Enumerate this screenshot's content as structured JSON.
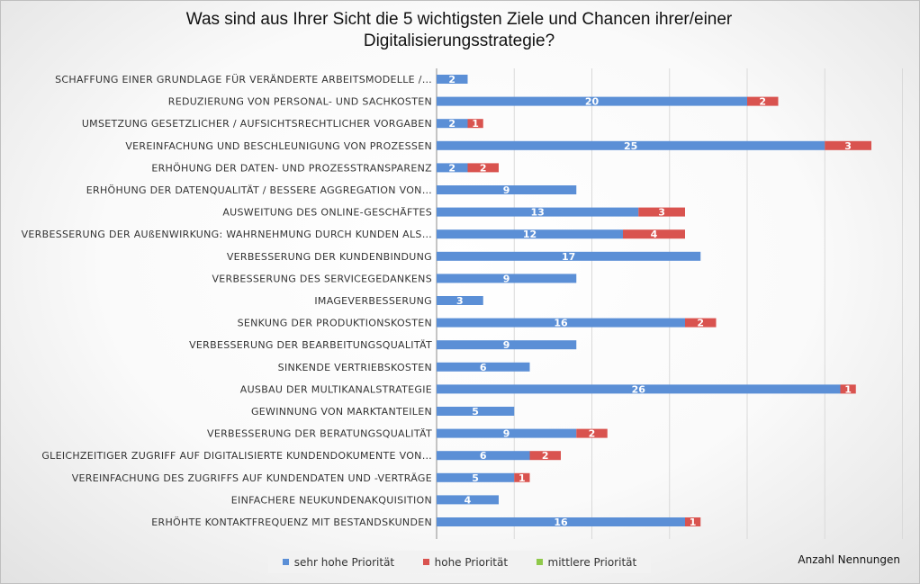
{
  "chart_data": {
    "type": "bar",
    "orientation": "horizontal",
    "stacked": true,
    "title": "Was sind aus Ihrer Sicht die 5 wichtigsten Ziele und Chancen ihrer/einer Digitalisierungsstrategie?",
    "title_lines": [
      "Was sind aus Ihrer Sicht die 5 wichtigsten Ziele und Chancen ihrer/einer",
      "Digitalisierungsstrategie?"
    ],
    "xlabel": "Anzahl Nennungen",
    "xlim": [
      0,
      30
    ],
    "grid": true,
    "legend_position": "bottom",
    "categories": [
      "SCHAFFUNG EINER GRUNDLAGE FÜR VERÄNDERTE ARBEITSMODELLE /…",
      "REDUZIERUNG VON PERSONAL- UND SACHKOSTEN",
      "UMSETZUNG GESETZLICHER / AUFSICHTSRECHTLICHER VORGABEN",
      "VEREINFACHUNG UND BESCHLEUNIGUNG VON PROZESSEN",
      "ERHÖHUNG DER DATEN- UND PROZESSTRANSPARENZ",
      "ERHÖHUNG DER DATENQUALITÄT / BESSERE AGGREGATION VON…",
      "AUSWEITUNG DES ONLINE-GESCHÄFTES",
      "VERBESSERUNG DER AUßENWIRKUNG: WAHRNEHMUNG DURCH KUNDEN ALS…",
      "VERBESSERUNG DER KUNDENBINDUNG",
      "VERBESSERUNG DES SERVICEGEDANKENS",
      "IMAGEVERBESSERUNG",
      "SENKUNG DER PRODUKTIONSKOSTEN",
      "VERBESSERUNG DER BEARBEITUNGSQUALITÄT",
      "SINKENDE VERTRIEBSKOSTEN",
      "AUSBAU DER MULTIKANALSTRATEGIE",
      "GEWINNUNG VON MARKTANTEILEN",
      "VERBESSERUNG DER BERATUNGSQUALITÄT",
      "GLEICHZEITIGER ZUGRIFF AUF DIGITALISIERTE KUNDENDOKUMENTE VON…",
      "VEREINFACHUNG DES ZUGRIFFS AUF KUNDENDATEN UND -VERTRÄGE",
      "EINFACHERE NEUKUNDENAKQUISITION",
      "ERHÖHTE KONTAKTFREQUENZ MIT BESTANDSKUNDEN"
    ],
    "series": [
      {
        "name": "sehr hohe Priorität",
        "color": "#5b8fd6",
        "values": [
          2,
          20,
          2,
          25,
          2,
          9,
          13,
          12,
          17,
          9,
          3,
          16,
          9,
          6,
          26,
          5,
          9,
          6,
          5,
          4,
          16
        ]
      },
      {
        "name": "hohe Priorität",
        "color": "#d9534f",
        "values": [
          0,
          2,
          1,
          3,
          2,
          0,
          3,
          4,
          0,
          0,
          0,
          2,
          0,
          0,
          1,
          0,
          2,
          2,
          1,
          0,
          1
        ]
      },
      {
        "name": "mittlere Priorität",
        "color": "#8fc94a",
        "values": [
          0,
          0,
          0,
          0,
          0,
          0,
          0,
          0,
          0,
          0,
          0,
          0,
          0,
          0,
          0,
          0,
          0,
          0,
          0,
          0,
          0
        ]
      }
    ]
  }
}
